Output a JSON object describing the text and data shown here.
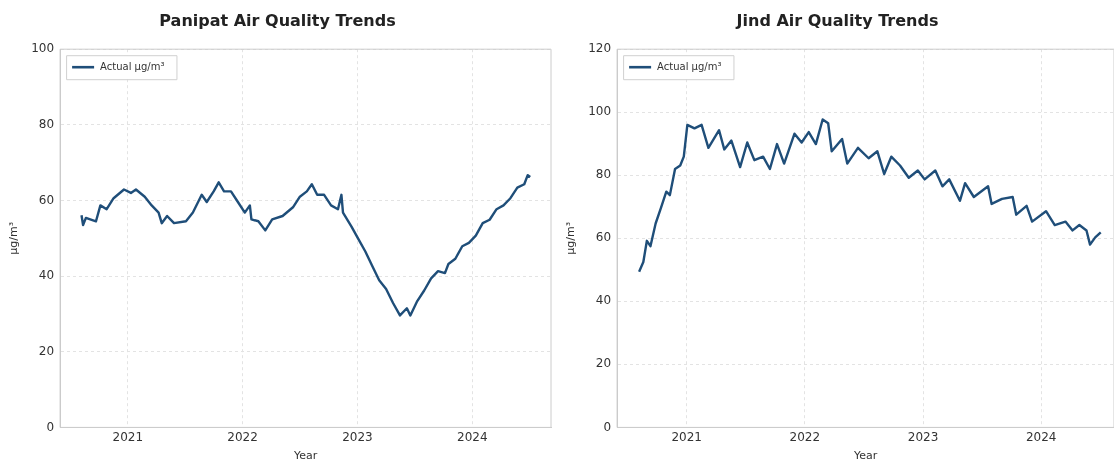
{
  "chart_data": [
    {
      "type": "line",
      "title": "Panipat Air Quality Trends",
      "xlabel": "Year",
      "ylabel": "µg/m³",
      "legend": "top left",
      "grid": true,
      "marker": "none",
      "line_style": "solid",
      "xlim": [
        "2020-05-31",
        "2024-09-07"
      ],
      "xticks": [
        "2021",
        "2022",
        "2023",
        "2024"
      ],
      "ylim": [
        0,
        100
      ],
      "yticks": [
        0,
        20,
        40,
        60,
        80,
        100
      ],
      "x": [
        "2020-08-07",
        "2020-08-12",
        "2020-08-21",
        "2020-09-22",
        "2020-10-06",
        "2020-10-26",
        "2020-11-17",
        "2020-12-20",
        "2021-01-11",
        "2021-01-27",
        "2021-02-24",
        "2021-03-18",
        "2021-04-09",
        "2021-04-19",
        "2021-05-06",
        "2021-05-28",
        "2021-07-05",
        "2021-07-27",
        "2021-08-24",
        "2021-09-09",
        "2021-10-01",
        "2021-10-17",
        "2021-11-03",
        "2021-11-25",
        "2021-12-17",
        "2022-01-08",
        "2022-01-24",
        "2022-01-29",
        "2022-02-20",
        "2022-03-14",
        "2022-04-05",
        "2022-05-08",
        "2022-06-10",
        "2022-07-02",
        "2022-07-24",
        "2022-08-09",
        "2022-08-26",
        "2022-09-17",
        "2022-10-09",
        "2022-10-31",
        "2022-11-11",
        "2022-11-16",
        "2022-12-13",
        "2023-01-04",
        "2023-01-26",
        "2023-02-17",
        "2023-03-11",
        "2023-04-02",
        "2023-04-24",
        "2023-05-16",
        "2023-06-07",
        "2023-06-18",
        "2023-07-10",
        "2023-08-01",
        "2023-08-23",
        "2023-09-14",
        "2023-10-06",
        "2023-10-17",
        "2023-11-08",
        "2023-11-30",
        "2023-12-21",
        "2024-01-12",
        "2024-02-03",
        "2024-02-25",
        "2024-03-18",
        "2024-04-09",
        "2024-05-01",
        "2024-05-23",
        "2024-06-14",
        "2024-06-25",
        "2024-07-03"
      ],
      "series": [
        {
          "name": "Actual µg/m³",
          "color": "#1f4e79",
          "values": [
            56.1,
            53.5,
            55.4,
            54.5,
            58.7,
            57.7,
            60.6,
            62.9,
            62,
            62.9,
            61,
            58.7,
            56.8,
            54,
            55.9,
            54,
            54.5,
            56.8,
            61.5,
            59.6,
            62.4,
            64.8,
            62.4,
            62.4,
            59.6,
            56.8,
            58.7,
            55,
            54.5,
            52.1,
            55,
            55.9,
            58.2,
            61,
            62.4,
            64.3,
            61.5,
            61.5,
            58.7,
            57.7,
            61.5,
            56.8,
            53.1,
            49.8,
            46.5,
            42.7,
            38.9,
            36.6,
            32.9,
            29.6,
            31.5,
            29.6,
            33.4,
            36.2,
            39.4,
            41.3,
            40.8,
            43.2,
            44.6,
            47.9,
            48.8,
            50.7,
            54,
            54.9,
            57.7,
            58.7,
            60.6,
            63.4,
            64.3,
            66.7,
            66.2
          ]
        }
      ]
    },
    {
      "type": "line",
      "title": "Jind Air Quality Trends",
      "xlabel": "Year",
      "ylabel": "µg/m³",
      "legend": "top left",
      "grid": true,
      "marker": "none",
      "line_style": "solid",
      "xlim": [
        "2020-05-31",
        "2024-08-13"
      ],
      "xticks": [
        "2021",
        "2022",
        "2023",
        "2024"
      ],
      "ylim": [
        0,
        120
      ],
      "yticks": [
        0,
        20,
        40,
        60,
        80,
        100,
        120
      ],
      "x": [
        "2020-08-07",
        "2020-08-20",
        "2020-08-31",
        "2020-09-11",
        "2020-09-27",
        "2020-10-14",
        "2020-10-30",
        "2020-11-10",
        "2020-11-26",
        "2020-12-12",
        "2020-12-23",
        "2021-01-03",
        "2021-01-25",
        "2021-02-16",
        "2021-03-09",
        "2021-04-11",
        "2021-04-27",
        "2021-05-19",
        "2021-06-15",
        "2021-07-07",
        "2021-07-29",
        "2021-08-25",
        "2021-09-15",
        "2021-10-07",
        "2021-10-29",
        "2021-11-30",
        "2021-12-22",
        "2022-01-13",
        "2022-02-04",
        "2022-02-25",
        "2022-03-14",
        "2022-03-25",
        "2022-04-26",
        "2022-05-12",
        "2022-06-14",
        "2022-07-17",
        "2022-08-13",
        "2022-09-03",
        "2022-09-25",
        "2022-10-22",
        "2022-11-18",
        "2022-12-16",
        "2023-01-06",
        "2023-02-08",
        "2023-03-02",
        "2023-03-23",
        "2023-04-25",
        "2023-05-11",
        "2023-06-07",
        "2023-07-21",
        "2023-08-01",
        "2023-09-02",
        "2023-10-05",
        "2023-10-16",
        "2023-11-17",
        "2023-12-04",
        "2024-01-16",
        "2024-02-12",
        "2024-03-16",
        "2024-04-07",
        "2024-04-28",
        "2024-05-20",
        "2024-05-31",
        "2024-06-16",
        "2024-07-03"
      ],
      "series": [
        {
          "name": "Actual µg/m³",
          "color": "#1f4e79",
          "values": [
            49.4,
            52.5,
            59.2,
            57.5,
            64.7,
            69.8,
            74.8,
            73.7,
            82,
            83.1,
            85.9,
            96,
            94.9,
            96,
            88.7,
            94.3,
            88.2,
            91,
            82.6,
            90.4,
            84.8,
            85.9,
            82,
            89.9,
            83.7,
            93.2,
            90.4,
            93.7,
            89.9,
            97.7,
            96.5,
            87.6,
            91.5,
            83.7,
            88.7,
            85.4,
            87.6,
            80.4,
            85.9,
            83.1,
            79.2,
            81.5,
            78.7,
            81.5,
            76.5,
            78.7,
            71.9,
            77.5,
            73.1,
            76.5,
            70.9,
            72.5,
            73.1,
            67.5,
            70.3,
            65.3,
            68.6,
            64.2,
            65.3,
            62.5,
            64.2,
            62.5,
            58,
            60.3,
            61.9
          ]
        }
      ]
    }
  ]
}
